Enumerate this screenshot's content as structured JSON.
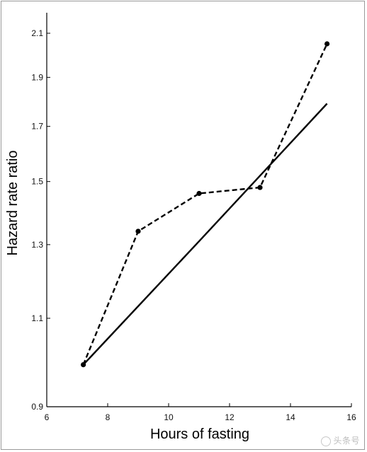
{
  "chart_data": {
    "type": "line",
    "xlabel": "Hours of fasting",
    "ylabel": "Hazard rate ratio",
    "xlim": [
      6,
      16
    ],
    "ylim": [
      0.9,
      2.2
    ],
    "y_scale": "log",
    "x_ticks": [
      6,
      8,
      10,
      12,
      14,
      16
    ],
    "x_tick_labels": [
      "6",
      "8",
      "10",
      "12",
      "14",
      "16"
    ],
    "y_ticks": [
      0.9,
      1.1,
      1.3,
      1.5,
      1.7,
      1.9,
      2.1
    ],
    "y_tick_labels": [
      "0.9",
      "1.1",
      "1.3",
      "1.5",
      "1.7",
      "1.9",
      "2.1"
    ],
    "grid": false,
    "series": [
      {
        "style": "dashed",
        "markers": true,
        "color": "#000000",
        "x": [
          7.2,
          9.0,
          11.0,
          13.0,
          15.2
        ],
        "y": [
          0.99,
          1.34,
          1.46,
          1.48,
          2.05
        ]
      },
      {
        "style": "solid",
        "markers": false,
        "color": "#000000",
        "x": [
          7.2,
          11.0,
          15.2
        ],
        "y": [
          0.99,
          1.31,
          1.79
        ]
      }
    ]
  },
  "watermark": "头条号"
}
